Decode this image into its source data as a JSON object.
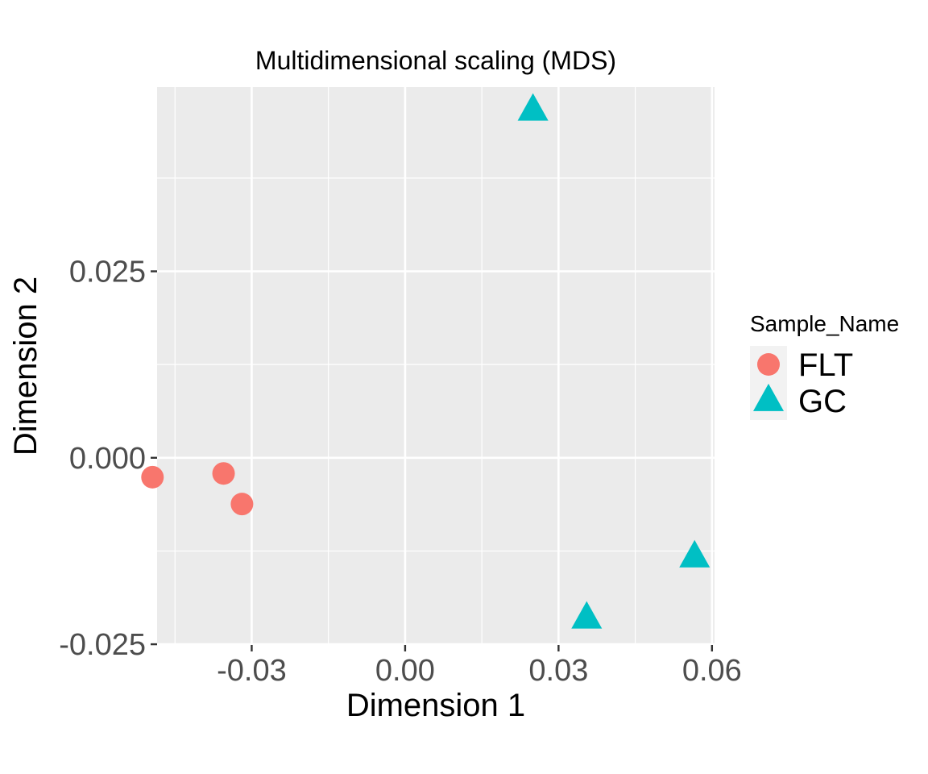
{
  "chart_data": {
    "type": "scatter",
    "title": "Multidimensional scaling (MDS)",
    "xlabel": "Dimension 1",
    "ylabel": "Dimension 2",
    "xlim": [
      -0.0485,
      0.0605
    ],
    "ylim": [
      -0.0251,
      0.0497
    ],
    "x_ticks": [
      -0.03,
      0.0,
      0.03,
      0.06
    ],
    "x_tick_labels": [
      "-0.03",
      "0.00",
      "0.03",
      "0.06"
    ],
    "y_ticks": [
      -0.025,
      0.0,
      0.025
    ],
    "y_tick_labels": [
      "-0.025",
      "0.000",
      "0.025"
    ],
    "x_minor_ticks": [
      -0.045,
      -0.015,
      0.015,
      0.045
    ],
    "y_minor_ticks": [
      -0.0125,
      0.0125,
      0.0375
    ],
    "grid": true,
    "legend": {
      "title": "Sample_Name",
      "position": "right"
    },
    "series": [
      {
        "name": "FLT",
        "color": "#F8766D",
        "shape": "circle",
        "points": [
          {
            "x": -0.0494,
            "y": -0.0026
          },
          {
            "x": -0.0355,
            "y": -0.0021
          },
          {
            "x": -0.0319,
            "y": -0.0062
          }
        ]
      },
      {
        "name": "GC",
        "color": "#00BFC4",
        "shape": "triangle",
        "points": [
          {
            "x": 0.025,
            "y": 0.0466
          },
          {
            "x": 0.0355,
            "y": -0.0215
          },
          {
            "x": 0.0566,
            "y": -0.0133
          }
        ]
      }
    ]
  }
}
